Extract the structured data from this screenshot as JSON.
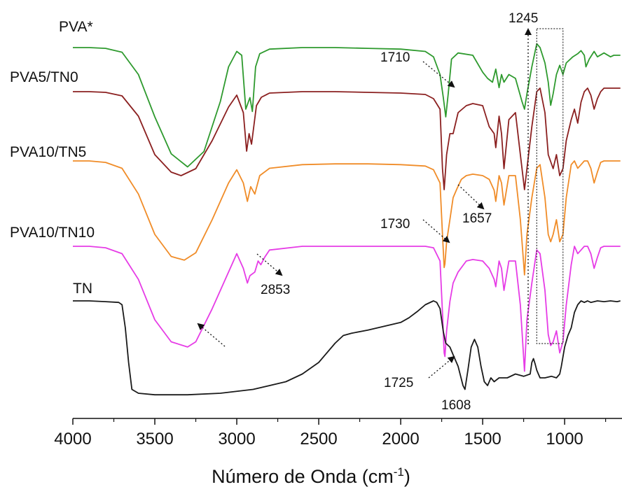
{
  "chart_data": {
    "type": "line",
    "title": "",
    "xlabel": "Número de Onda (cm",
    "xlabel_superscript": "-1",
    "xlabel_suffix": ")",
    "ylabel": "",
    "xlim": [
      4000,
      650
    ],
    "x_reversed": true,
    "x_ticks": [
      4000,
      3500,
      3000,
      2500,
      2000,
      1500,
      1000
    ],
    "x_tick_labels": [
      "4000",
      "3500",
      "3000",
      "2500",
      "2000",
      "1500",
      "1000"
    ],
    "y_axis": "none",
    "grid": false,
    "legend": "inline labels at left of each curve",
    "series": [
      {
        "name": "PVA*",
        "color": "#2e9a2e",
        "x": [
          4000,
          3900,
          3800,
          3700,
          3600,
          3500,
          3400,
          3300,
          3200,
          3100,
          3050,
          3000,
          2970,
          2945,
          2920,
          2905,
          2885,
          2860,
          2800,
          2600,
          2400,
          2200,
          2000,
          1850,
          1800,
          1760,
          1740,
          1725,
          1710,
          1690,
          1650,
          1560,
          1500,
          1470,
          1440,
          1420,
          1400,
          1385,
          1370,
          1340,
          1300,
          1260,
          1245,
          1230,
          1200,
          1170,
          1150,
          1120,
          1100,
          1085,
          1070,
          1050,
          1030,
          1010,
          990,
          950,
          920,
          900,
          880,
          870,
          850,
          820,
          800,
          760,
          720,
          700,
          660
        ],
        "y": [
          0.1,
          0.1,
          0.11,
          0.16,
          0.45,
          1.0,
          1.48,
          1.65,
          1.45,
          0.8,
          0.35,
          0.15,
          0.2,
          0.9,
          0.75,
          0.93,
          0.35,
          0.18,
          0.12,
          0.1,
          0.1,
          0.11,
          0.12,
          0.15,
          0.22,
          0.45,
          0.75,
          1.0,
          0.7,
          0.25,
          0.17,
          0.2,
          0.42,
          0.5,
          0.55,
          0.38,
          0.62,
          0.45,
          0.55,
          0.45,
          0.5,
          0.8,
          0.9,
          0.7,
          0.35,
          0.05,
          0.1,
          0.3,
          0.55,
          0.85,
          0.7,
          0.45,
          0.33,
          0.45,
          0.3,
          0.22,
          0.18,
          0.14,
          0.2,
          0.35,
          0.25,
          0.15,
          0.22,
          0.17,
          0.22,
          0.2,
          0.2
        ]
      },
      {
        "name": "PVA5/TN0",
        "color": "#8b2020",
        "x": [
          4000,
          3900,
          3800,
          3700,
          3600,
          3500,
          3400,
          3340,
          3250,
          3150,
          3050,
          3000,
          2960,
          2940,
          2925,
          2910,
          2880,
          2850,
          2800,
          2600,
          2400,
          2200,
          2000,
          1850,
          1800,
          1760,
          1745,
          1735,
          1730,
          1720,
          1700,
          1680,
          1650,
          1600,
          1560,
          1500,
          1460,
          1430,
          1420,
          1400,
          1385,
          1370,
          1340,
          1300,
          1270,
          1245,
          1230,
          1200,
          1170,
          1150,
          1120,
          1100,
          1085,
          1070,
          1050,
          1030,
          1010,
          990,
          960,
          940,
          920,
          900,
          880,
          860,
          840,
          820,
          800,
          780,
          760,
          720,
          680,
          660
        ],
        "y": [
          0.1,
          0.1,
          0.11,
          0.16,
          0.45,
          1.0,
          1.25,
          1.3,
          1.2,
          0.8,
          0.32,
          0.15,
          0.4,
          0.95,
          0.7,
          0.85,
          0.3,
          0.18,
          0.12,
          0.1,
          0.1,
          0.11,
          0.12,
          0.14,
          0.2,
          0.35,
          1.2,
          1.5,
          1.35,
          1.0,
          0.7,
          0.7,
          0.4,
          0.3,
          0.27,
          0.3,
          0.6,
          0.7,
          0.9,
          0.45,
          0.7,
          1.2,
          0.5,
          0.4,
          1.0,
          1.5,
          1.2,
          0.6,
          0.1,
          0.05,
          0.4,
          1.0,
          1.1,
          1.2,
          1.0,
          1.3,
          1.2,
          0.8,
          0.5,
          0.35,
          0.55,
          0.25,
          0.1,
          0.05,
          0.15,
          0.35,
          0.2,
          0.1,
          0.05,
          0.05,
          0.05,
          0.05
        ]
      },
      {
        "name": "PVA10/TN5",
        "color": "#f08c28",
        "x": [
          4000,
          3900,
          3800,
          3700,
          3600,
          3500,
          3400,
          3320,
          3250,
          3150,
          3050,
          3000,
          2960,
          2935,
          2915,
          2890,
          2860,
          2800,
          2600,
          2400,
          2200,
          2000,
          1850,
          1800,
          1760,
          1745,
          1735,
          1730,
          1720,
          1700,
          1680,
          1657,
          1630,
          1600,
          1560,
          1500,
          1460,
          1430,
          1420,
          1400,
          1385,
          1370,
          1340,
          1300,
          1270,
          1245,
          1230,
          1200,
          1170,
          1150,
          1120,
          1100,
          1085,
          1070,
          1050,
          1030,
          1010,
          990,
          960,
          940,
          920,
          900,
          880,
          860,
          840,
          820,
          800,
          780,
          760,
          720,
          680,
          660
        ],
        "y": [
          0.0,
          0.0,
          0.02,
          0.1,
          0.45,
          1.0,
          1.3,
          1.35,
          1.25,
          0.8,
          0.3,
          0.12,
          0.3,
          0.55,
          0.35,
          0.45,
          0.2,
          0.1,
          0.05,
          0.04,
          0.04,
          0.05,
          0.07,
          0.12,
          0.3,
          1.0,
          1.45,
          1.4,
          1.1,
          0.8,
          0.5,
          0.38,
          0.25,
          0.2,
          0.18,
          0.2,
          0.25,
          0.4,
          0.55,
          0.2,
          0.3,
          0.6,
          0.2,
          0.2,
          0.8,
          1.55,
          1.0,
          0.5,
          0.1,
          0.05,
          0.5,
          1.0,
          1.1,
          1.0,
          0.8,
          1.1,
          1.0,
          0.5,
          0.05,
          0.0,
          0.1,
          0.05,
          0.0,
          0.0,
          0.1,
          0.3,
          0.15,
          0.02,
          0.0,
          0.0,
          0.0,
          0.0
        ]
      },
      {
        "name": "PVA10/TN10",
        "color": "#e63ce6",
        "x": [
          4000,
          3900,
          3800,
          3700,
          3600,
          3500,
          3400,
          3300,
          3250,
          3150,
          3050,
          3000,
          2960,
          2935,
          2920,
          2890,
          2870,
          2853,
          2830,
          2800,
          2600,
          2400,
          2200,
          2000,
          1850,
          1800,
          1760,
          1745,
          1735,
          1730,
          1720,
          1700,
          1680,
          1650,
          1600,
          1560,
          1500,
          1460,
          1430,
          1420,
          1400,
          1385,
          1370,
          1340,
          1300,
          1270,
          1245,
          1230,
          1200,
          1170,
          1150,
          1120,
          1100,
          1085,
          1070,
          1050,
          1030,
          1010,
          990,
          960,
          940,
          920,
          900,
          880,
          860,
          840,
          820,
          800,
          780,
          760,
          720,
          680,
          660
        ],
        "y": [
          0.0,
          0.0,
          0.02,
          0.1,
          0.45,
          1.0,
          1.3,
          1.37,
          1.3,
          0.85,
          0.35,
          0.1,
          0.3,
          0.5,
          0.4,
          0.35,
          0.2,
          0.25,
          0.15,
          0.05,
          0.0,
          0.0,
          0.0,
          0.0,
          0.0,
          0.02,
          0.2,
          0.9,
          1.45,
          1.5,
          1.15,
          0.75,
          0.5,
          0.35,
          0.2,
          0.18,
          0.2,
          0.3,
          0.45,
          0.55,
          0.2,
          0.3,
          0.6,
          0.2,
          0.2,
          0.8,
          1.7,
          1.0,
          0.5,
          0.05,
          0.1,
          0.6,
          1.2,
          1.35,
          1.3,
          1.15,
          1.45,
          1.3,
          0.8,
          0.25,
          0.0,
          0.1,
          0.05,
          0.0,
          0.0,
          0.1,
          0.3,
          0.15,
          0.02,
          0.0,
          0.0,
          0.0,
          0.0
        ]
      },
      {
        "name": "TN",
        "color": "#1a1a1a",
        "x": [
          4000,
          3900,
          3800,
          3720,
          3700,
          3680,
          3660,
          3640,
          3600,
          3500,
          3300,
          3100,
          2900,
          2700,
          2600,
          2500,
          2400,
          2350,
          2300,
          2200,
          2100,
          2000,
          1950,
          1900,
          1850,
          1800,
          1780,
          1760,
          1740,
          1725,
          1700,
          1680,
          1650,
          1620,
          1608,
          1590,
          1570,
          1550,
          1530,
          1510,
          1490,
          1470,
          1450,
          1430,
          1400,
          1350,
          1300,
          1250,
          1210,
          1200,
          1190,
          1180,
          1170,
          1160,
          1150,
          1120,
          1080,
          1050,
          1030,
          1020,
          1000,
          980,
          960,
          940,
          920,
          900,
          880,
          860,
          840,
          800,
          760,
          720,
          680,
          660
        ],
        "y": [
          0.0,
          0.0,
          0.01,
          0.02,
          0.05,
          0.35,
          0.8,
          1.15,
          1.2,
          1.22,
          1.22,
          1.2,
          1.15,
          1.05,
          0.95,
          0.8,
          0.55,
          0.45,
          0.42,
          0.38,
          0.33,
          0.28,
          0.22,
          0.14,
          0.05,
          0.0,
          0.02,
          0.1,
          0.4,
          0.55,
          0.6,
          0.7,
          0.85,
          1.1,
          1.15,
          0.9,
          0.6,
          0.5,
          0.6,
          0.85,
          1.05,
          1.1,
          1.0,
          1.05,
          1.0,
          1.0,
          0.95,
          0.98,
          0.95,
          0.8,
          0.75,
          0.82,
          0.9,
          0.95,
          1.0,
          1.0,
          0.98,
          1.0,
          0.95,
          0.85,
          0.6,
          0.45,
          0.35,
          0.15,
          0.05,
          0.0,
          0.02,
          0.0,
          0.02,
          0.0,
          0.01,
          0.0,
          0.01,
          0.0
        ]
      }
    ],
    "annotations": [
      {
        "text": "1710",
        "x": 1710,
        "series": "PVA*",
        "arrow": "dotted"
      },
      {
        "text": "1245",
        "x": 1245,
        "series": "PVA*",
        "arrow": "dotted vertical"
      },
      {
        "text": "1730",
        "x": 1730,
        "series": "PVA10/TN10",
        "arrow": "dotted"
      },
      {
        "text": "1657",
        "x": 1657,
        "series": "PVA10/TN5",
        "arrow": "dotted"
      },
      {
        "text": "2853",
        "x": 2853,
        "series": "PVA10/TN10",
        "arrow": "dotted"
      },
      {
        "text": "1725",
        "x": 1725,
        "series": "TN",
        "arrow": "dotted"
      },
      {
        "text": "1608",
        "x": 1608,
        "series": "TN",
        "arrow": "none"
      },
      {
        "text": "",
        "x": 3300,
        "series": "PVA10/TN10",
        "arrow": "dotted"
      }
    ],
    "highlight_box": {
      "x_range": [
        1170,
        1010
      ],
      "style": "dotted rectangle"
    }
  }
}
